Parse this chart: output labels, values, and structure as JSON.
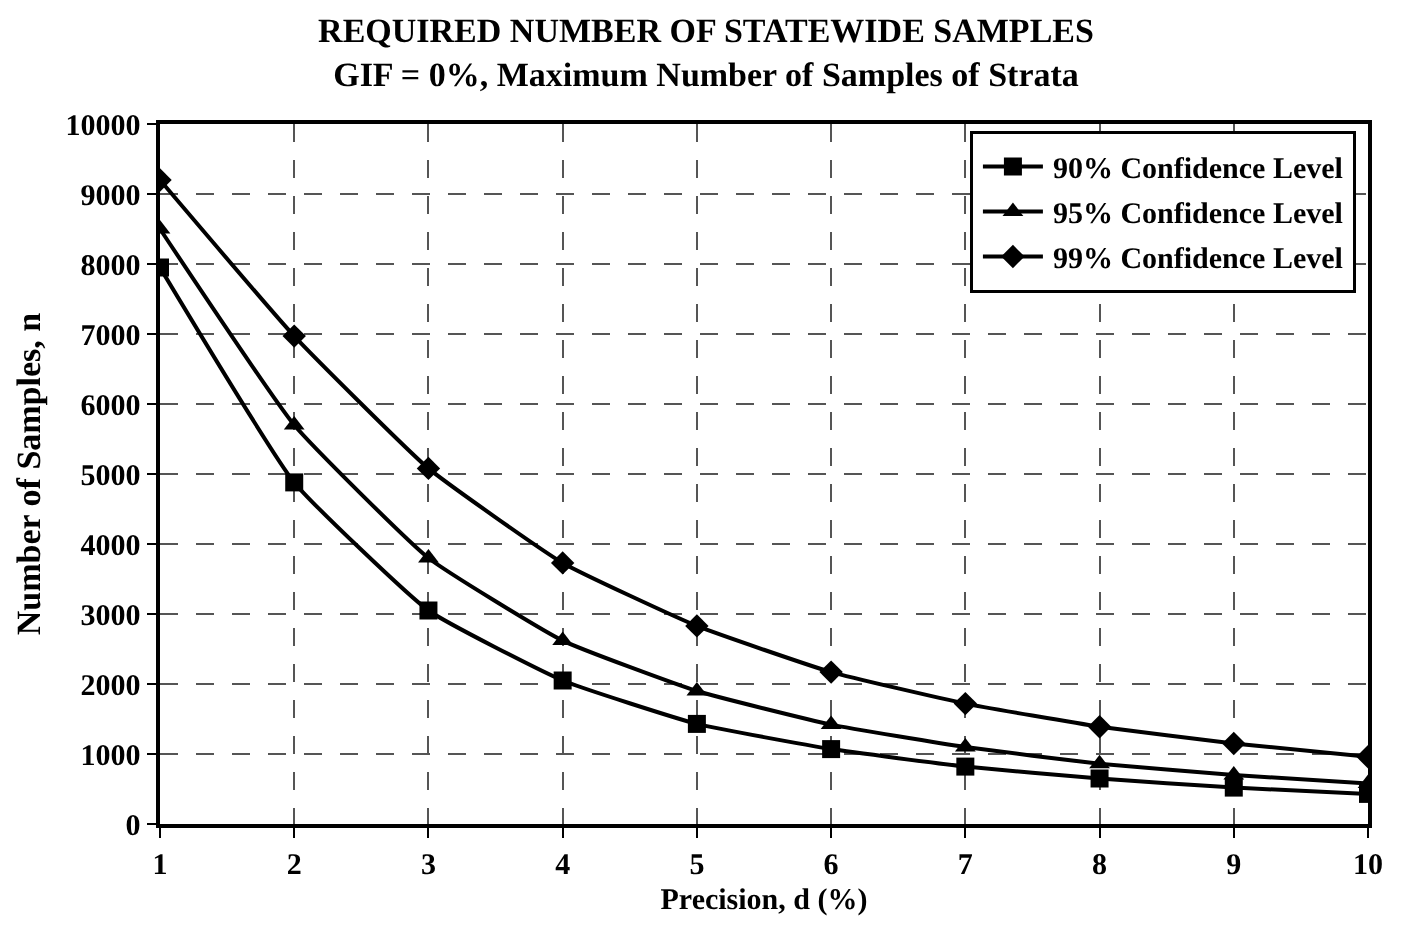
{
  "chart_data": {
    "type": "line",
    "title": "REQUIRED NUMBER OF STATEWIDE SAMPLES",
    "subtitle": "GIF = 0%, Maximum Number of Samples of Strata",
    "xlabel": "Precision, d (%)",
    "ylabel": "Number of Samples, n",
    "x": [
      1,
      2,
      3,
      4,
      5,
      6,
      7,
      8,
      9,
      10
    ],
    "series": [
      {
        "name": "90% Confidence Level",
        "color": "#000000",
        "marker": "square",
        "values": [
          7950,
          4880,
          3050,
          2050,
          1430,
          1070,
          820,
          650,
          520,
          430
        ]
      },
      {
        "name": "95% Confidence Level",
        "color": "#000000",
        "marker": "triangle",
        "values": [
          8500,
          5700,
          3800,
          2620,
          1900,
          1420,
          1100,
          860,
          700,
          580
        ]
      },
      {
        "name": "99% Confidence Level",
        "color": "#000000",
        "marker": "diamond",
        "values": [
          9200,
          6970,
          5080,
          3730,
          2830,
          2170,
          1720,
          1390,
          1150,
          960
        ]
      }
    ],
    "xlim": [
      1,
      10
    ],
    "xticks": [
      1,
      2,
      3,
      4,
      5,
      6,
      7,
      8,
      9,
      10
    ],
    "ylim": [
      0,
      10000
    ],
    "yticks": [
      0,
      1000,
      2000,
      3000,
      4000,
      5000,
      6000,
      7000,
      8000,
      9000,
      10000
    ],
    "grid": true,
    "legend": "top right",
    "line_style": "solid"
  }
}
